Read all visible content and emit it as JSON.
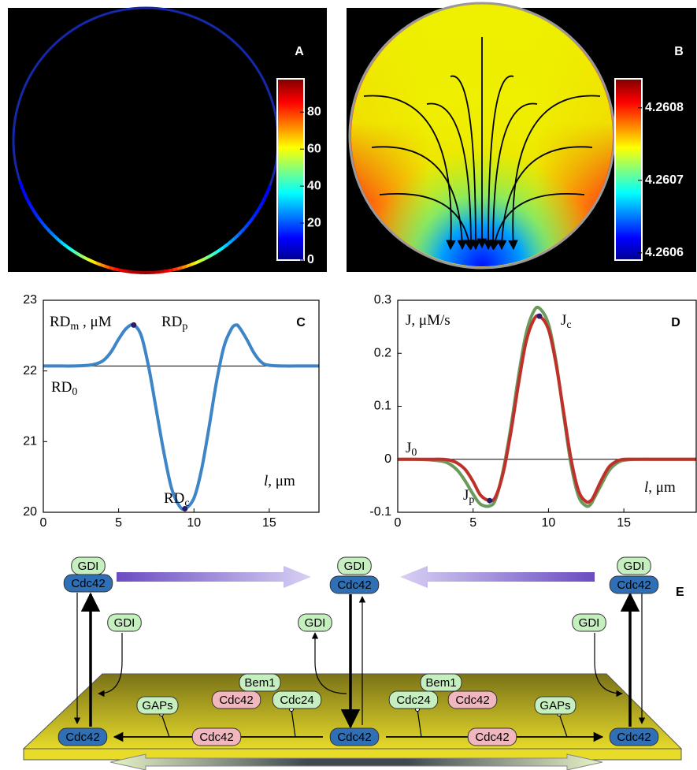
{
  "chart_data": [
    {
      "type": "heatmap",
      "title": "A",
      "clim": [
        0,
        98
      ],
      "cticks": [
        0,
        20,
        40,
        60,
        80
      ]
    },
    {
      "type": "heatmap",
      "title": "B",
      "clim": [
        4.26059,
        4.26084
      ],
      "cticks": [
        4.2606,
        4.2607,
        4.2608
      ]
    },
    {
      "type": "line",
      "title": "C",
      "x": [
        0,
        1,
        2,
        3,
        3.5,
        4,
        4.5,
        5,
        5.5,
        6,
        6.5,
        7,
        7.5,
        8,
        8.5,
        9,
        9.4,
        10,
        10.5,
        11,
        11.5,
        12,
        12.5,
        12.8,
        13,
        13.5,
        14,
        14.5,
        15,
        16,
        17,
        18.3
      ],
      "series": [
        {
          "color": "#3d85c6",
          "values": [
            22.07,
            22.07,
            22.07,
            22.08,
            22.1,
            22.15,
            22.27,
            22.45,
            22.6,
            22.65,
            22.5,
            22.05,
            21.45,
            20.85,
            20.35,
            20.1,
            20.05,
            20.2,
            20.6,
            21.2,
            21.85,
            22.35,
            22.6,
            22.65,
            22.62,
            22.45,
            22.25,
            22.12,
            22.08,
            22.07,
            22.07,
            22.07
          ]
        }
      ],
      "xlim": [
        0,
        18.3
      ],
      "ylim": [
        20,
        23
      ],
      "xticks": [
        0,
        5,
        10,
        15
      ],
      "yticks": [
        20,
        21,
        22,
        23
      ],
      "hline": 22.07,
      "ylabel": {
        "base": "RD",
        "sub": "m",
        "rest": " , μM"
      },
      "xlabel": {
        "var": "l",
        "rest": ", μm"
      },
      "annotations": [
        {
          "base": "RD",
          "sub": "p"
        },
        {
          "base": "RD",
          "sub": "0"
        },
        {
          "base": "RD",
          "sub": "c"
        }
      ]
    },
    {
      "type": "line",
      "title": "D",
      "x": [
        0,
        1,
        2,
        3,
        3.5,
        4,
        4.5,
        5,
        5.5,
        6.1,
        6.5,
        7,
        7.5,
        8,
        8.5,
        9,
        9.4,
        10,
        10.5,
        11,
        11.5,
        12,
        12.5,
        12.8,
        13,
        13.5,
        14,
        14.5,
        15,
        16,
        17,
        19.8
      ],
      "series": [
        {
          "color": "#6b9a5c",
          "values": [
            0,
            0,
            -0.001,
            -0.004,
            -0.01,
            -0.022,
            -0.042,
            -0.066,
            -0.085,
            -0.088,
            -0.075,
            -0.02,
            0.06,
            0.155,
            0.235,
            0.278,
            0.285,
            0.255,
            0.185,
            0.085,
            -0.01,
            -0.07,
            -0.088,
            -0.085,
            -0.075,
            -0.048,
            -0.022,
            -0.008,
            -0.002,
            0,
            0,
            0
          ]
        },
        {
          "color": "#c0302a",
          "values": [
            0,
            0,
            0,
            0,
            -0.002,
            -0.008,
            -0.02,
            -0.042,
            -0.068,
            -0.078,
            -0.07,
            -0.025,
            0.05,
            0.14,
            0.22,
            0.262,
            0.27,
            0.245,
            0.18,
            0.09,
            0.0,
            -0.06,
            -0.08,
            -0.078,
            -0.07,
            -0.04,
            -0.015,
            -0.004,
            0,
            0,
            0,
            0
          ]
        }
      ],
      "xlim": [
        0,
        19.8
      ],
      "ylim": [
        -0.1,
        0.3
      ],
      "xticks": [
        0,
        5,
        10,
        15
      ],
      "yticks": [
        -0.1,
        0,
        0.1,
        0.2,
        0.3
      ],
      "hline": 0,
      "ylabel": {
        "base": "J, μM/s"
      },
      "xlabel": {
        "var": "l",
        "rest": ", μm"
      },
      "annotations": [
        {
          "base": "J",
          "sub": "c"
        },
        {
          "base": "J",
          "sub": "0"
        },
        {
          "base": "J",
          "sub": "p"
        }
      ]
    }
  ],
  "diagram": {
    "title": "E",
    "nodes": [
      {
        "label": "GDI",
        "color": "#c6efc0"
      },
      {
        "label": "Cdc42",
        "color": "#2f6fb6"
      },
      {
        "label": "GDI",
        "color": "#c6efc0"
      },
      {
        "label": "Cdc42",
        "color": "#2f6fb6"
      },
      {
        "label": "GDI",
        "color": "#c6efc0"
      },
      {
        "label": "Cdc42",
        "color": "#2f6fb6"
      },
      {
        "label": "GDI",
        "color": "#c6efc0"
      },
      {
        "label": "GDI",
        "color": "#c6efc0"
      },
      {
        "label": "GDI",
        "color": "#c6efc0"
      },
      {
        "label": "Bem1",
        "color": "#c6efc0"
      },
      {
        "label": "Cdc42",
        "color": "#f2b6bf"
      },
      {
        "label": "Cdc24",
        "color": "#c6efc0"
      },
      {
        "label": "Bem1",
        "color": "#c6efc0"
      },
      {
        "label": "Cdc24",
        "color": "#c6efc0"
      },
      {
        "label": "Cdc42",
        "color": "#f2b6bf"
      },
      {
        "label": "GAPs",
        "color": "#c6efc0"
      },
      {
        "label": "GAPs",
        "color": "#c6efc0"
      },
      {
        "label": "Cdc42",
        "color": "#2f6fb6"
      },
      {
        "label": "Cdc42",
        "color": "#f2b6bf"
      },
      {
        "label": "Cdc42",
        "color": "#2f6fb6"
      },
      {
        "label": "Cdc42",
        "color": "#f2b6bf"
      },
      {
        "label": "Cdc42",
        "color": "#2f6fb6"
      }
    ]
  }
}
